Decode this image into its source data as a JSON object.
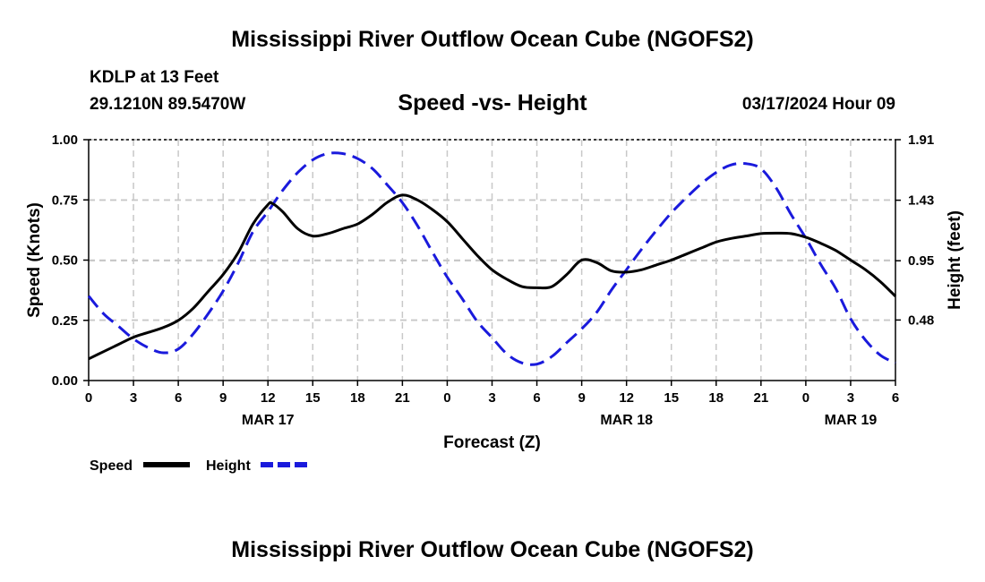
{
  "header": {
    "title": "Mississippi River Outflow Ocean Cube (NGOFS2)",
    "station": "KDLP at 13 Feet",
    "coords": "29.1210N  89.5470W",
    "subtitle": "Speed -vs- Height",
    "timestamp": "03/17/2024 Hour 09"
  },
  "footer": {
    "title": "Mississippi River Outflow Ocean Cube (NGOFS2)"
  },
  "chart_data": {
    "type": "line",
    "xlabel": "Forecast (Z)",
    "ylabel": "Speed (Knots)",
    "y2label": "Height (feet)",
    "x_unit": "forecast hours from 03/17 00Z",
    "xlim": [
      0,
      54
    ],
    "ylim": [
      0,
      1
    ],
    "y2lim": [
      0,
      1.91
    ],
    "grid": true,
    "x_ticks": [
      0,
      3,
      6,
      9,
      12,
      15,
      18,
      21,
      24,
      27,
      30,
      33,
      36,
      39,
      42,
      45,
      48,
      51,
      54
    ],
    "x_tick_labels": [
      "0",
      "3",
      "6",
      "9",
      "12",
      "15",
      "18",
      "21",
      "0",
      "3",
      "6",
      "9",
      "12",
      "15",
      "18",
      "21",
      "0",
      "3",
      "6"
    ],
    "date_labels": [
      {
        "x": 12,
        "label": "MAR 17"
      },
      {
        "x": 36,
        "label": "MAR 18"
      },
      {
        "x": 51,
        "label": "MAR 19"
      }
    ],
    "y_ticks": [
      0,
      0.25,
      0.5,
      0.75,
      1.0
    ],
    "y_tick_labels": [
      "0.00",
      "0.25",
      "0.50",
      "0.75",
      "1.00"
    ],
    "y2_ticks": [
      0.48,
      0.95,
      1.43,
      1.91
    ],
    "y2_tick_labels": [
      "0.48",
      "0.95",
      "1.43",
      "1.91"
    ],
    "series": [
      {
        "name": "Speed",
        "axis": "left",
        "color": "#000000",
        "style": "solid",
        "x": [
          0,
          1,
          2,
          3,
          4,
          5,
          6,
          7,
          8,
          9,
          10,
          11,
          12,
          12.3,
          13,
          14,
          15,
          16,
          17,
          18,
          19,
          20,
          21,
          22,
          23,
          24,
          25,
          26,
          27,
          28,
          29,
          30,
          31,
          32,
          33,
          34,
          35,
          36,
          37,
          38,
          39,
          40,
          41,
          42,
          43,
          44,
          45,
          46,
          47,
          48,
          49,
          50,
          51,
          52,
          53,
          54
        ],
        "values": [
          0.09,
          0.12,
          0.15,
          0.18,
          0.2,
          0.22,
          0.25,
          0.3,
          0.37,
          0.44,
          0.53,
          0.65,
          0.73,
          0.735,
          0.7,
          0.63,
          0.6,
          0.61,
          0.63,
          0.65,
          0.69,
          0.74,
          0.77,
          0.75,
          0.71,
          0.66,
          0.59,
          0.52,
          0.46,
          0.42,
          0.39,
          0.385,
          0.39,
          0.44,
          0.5,
          0.49,
          0.455,
          0.45,
          0.46,
          0.48,
          0.5,
          0.525,
          0.55,
          0.575,
          0.59,
          0.6,
          0.61,
          0.612,
          0.61,
          0.595,
          0.57,
          0.54,
          0.5,
          0.46,
          0.41,
          0.35
        ]
      },
      {
        "name": "Height",
        "axis": "right",
        "color": "#1a1adc",
        "style": "dashed",
        "x": [
          0,
          1,
          2,
          3,
          4,
          5,
          6,
          7,
          8,
          9,
          10,
          11,
          12,
          13,
          14,
          15,
          16,
          17,
          18,
          19,
          20,
          21,
          22,
          23,
          24,
          25,
          26,
          27,
          28,
          29,
          30,
          31,
          32,
          33,
          34,
          35,
          36,
          37,
          38,
          39,
          40,
          41,
          42,
          43,
          44,
          45,
          46,
          47,
          48,
          49,
          50,
          51,
          52,
          53,
          54
        ],
        "values": [
          0.67,
          0.53,
          0.43,
          0.33,
          0.26,
          0.22,
          0.25,
          0.37,
          0.53,
          0.71,
          0.93,
          1.18,
          1.34,
          1.51,
          1.65,
          1.75,
          1.8,
          1.8,
          1.76,
          1.68,
          1.55,
          1.41,
          1.23,
          1.02,
          0.82,
          0.65,
          0.47,
          0.34,
          0.21,
          0.14,
          0.13,
          0.19,
          0.3,
          0.41,
          0.54,
          0.72,
          0.88,
          1.04,
          1.19,
          1.33,
          1.45,
          1.56,
          1.65,
          1.71,
          1.72,
          1.68,
          1.53,
          1.32,
          1.13,
          0.92,
          0.73,
          0.49,
          0.32,
          0.2,
          0.14
        ]
      }
    ],
    "legend": {
      "placement": "bottom-left",
      "items": [
        {
          "label": "Speed",
          "color": "#000000",
          "style": "solid"
        },
        {
          "label": "Height",
          "color": "#1a1adc",
          "style": "dashed"
        }
      ]
    }
  }
}
